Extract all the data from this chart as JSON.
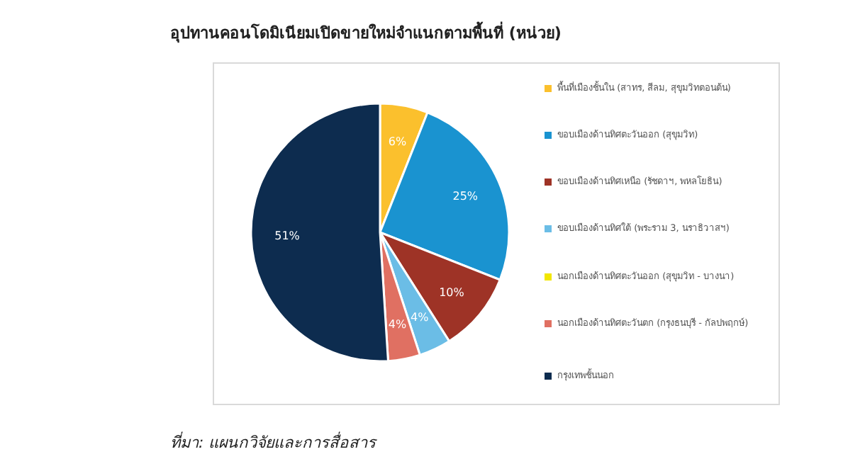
{
  "chart_data": {
    "type": "pie",
    "title": "อุปทานคอนโดมิเนียมเปิดขายใหม่จำแนกตามพื้นที่ (หน่วย)",
    "categories": [
      "พื้นที่เมืองชั้นใน (สาทร, สีลม, สุขุมวิทตอนต้น)",
      "ขอบเมืองด้านทิศตะวันออก (สุขุมวิท)",
      "ขอบเมืองด้านทิศเหนือ (รัชดาฯ, พหลโยธิน)",
      "ขอบเมืองด้านทิศใต้ (พระราม 3, นราธิวาสฯ)",
      "นอกเมืองด้านทิศตะวันออก (สุขุมวิท - บางนา)",
      "นอกเมืองด้านทิศตะวันตก (กรุงธนบุรี - กัลปพฤกษ์)",
      "กรุงเทพชั้นนอก"
    ],
    "values": [
      6,
      25,
      10,
      4,
      0,
      4,
      51
    ],
    "value_labels": [
      "6%",
      "25%",
      "10%",
      "4%",
      null,
      "4%",
      "51%"
    ],
    "colors": [
      "#fbc02d",
      "#1a93d0",
      "#9e3326",
      "#6bbde6",
      "#f2e600",
      "#e07062",
      "#0d2c4f"
    ],
    "legend": "right",
    "annotations": [
      "ที่มา: แผนกวิจัยและการสื่อสาร"
    ]
  }
}
